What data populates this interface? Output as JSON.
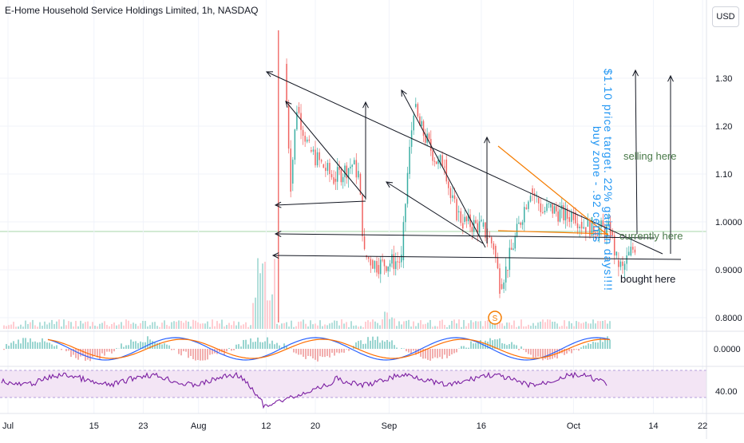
{
  "header": {
    "title": "E-Home Household Service Holdings Limited, 1h, NASDAQ",
    "currency_button": "USD"
  },
  "chart_data": {
    "type": "line",
    "title": "E-Home Household Service Holdings Limited, 1h, NASDAQ",
    "price_axis": {
      "ticks": [
        "1.30",
        "1.20",
        "1.10",
        "1.0000",
        "0.9000",
        "0.8000"
      ],
      "tick_values": [
        1.3,
        1.2,
        1.1,
        1.0,
        0.9,
        0.8
      ],
      "range": [
        0.78,
        1.4
      ]
    },
    "macd_axis": {
      "ticks": [
        "0.0000"
      ]
    },
    "rsi_axis": {
      "ticks": [
        "40.00"
      ],
      "band": [
        30,
        70
      ]
    },
    "time_axis": {
      "ticks": [
        "Jul",
        "15",
        "23",
        "Aug",
        "12",
        "20",
        "Sep",
        "16",
        "Oct",
        "14",
        "22"
      ]
    },
    "price_series": {
      "name": "",
      "points": [
        [
          "Aug 15",
          1.33
        ],
        [
          "Aug 16",
          1.08
        ],
        [
          "Aug 17",
          1.24
        ],
        [
          "Aug 19",
          1.15
        ],
        [
          "Aug 21",
          1.12
        ],
        [
          "Aug 23",
          1.09
        ],
        [
          "Aug 26",
          1.12
        ],
        [
          "Aug 27",
          1.1
        ],
        [
          "Aug 28",
          0.93
        ],
        [
          "Aug 29",
          0.92
        ],
        [
          "Aug 30",
          0.91
        ],
        [
          "Sep 3",
          0.92
        ],
        [
          "Sep 4",
          1.1
        ],
        [
          "Sep 5",
          1.24
        ],
        [
          "Sep 6",
          1.2
        ],
        [
          "Sep 9",
          1.12
        ],
        [
          "Sep 10",
          1.13
        ],
        [
          "Sep 11",
          1.05
        ],
        [
          "Sep 12",
          1.02
        ],
        [
          "Sep 13",
          1.0
        ],
        [
          "Sep 16",
          0.99
        ],
        [
          "Sep 17",
          0.97
        ],
        [
          "Sep 18",
          0.95
        ],
        [
          "Sep 19",
          0.87
        ],
        [
          "Sep 20",
          0.9
        ],
        [
          "Sep 23",
          1.03
        ],
        [
          "Sep 24",
          1.07
        ],
        [
          "Sep 25",
          1.05
        ],
        [
          "Sep 26",
          1.02
        ],
        [
          "Sep 27",
          1.03
        ],
        [
          "Sep 30",
          1.01
        ],
        [
          "Oct 1",
          1.02
        ],
        [
          "Oct 2",
          1.0
        ],
        [
          "Oct 3",
          0.99
        ],
        [
          "Oct 4",
          0.99
        ],
        [
          "Oct 7",
          0.98
        ],
        [
          "Oct 8",
          0.92
        ],
        [
          "Oct 9",
          0.9
        ],
        [
          "Oct 10",
          0.93
        ],
        [
          "Oct 11",
          0.95
        ]
      ]
    },
    "annotations": [
      "selling here",
      "currently here",
      "bought here",
      "$1.10 price target. 22% gain in days!!!!",
      "buy zone - .92 cents"
    ],
    "event_marker": "S",
    "colors": {
      "up": "#26a69a",
      "down": "#ef5350",
      "drawing_lines": "#131722",
      "orange_wedge": "#f57c00",
      "annotation_green": "#4a7a4a",
      "annotation_blue": "#2196f3",
      "macd_line": "#2962ff",
      "signal_line": "#ff6d00",
      "rsi_line": "#7b1fa2",
      "rsi_band": "#f3e5f5"
    }
  }
}
